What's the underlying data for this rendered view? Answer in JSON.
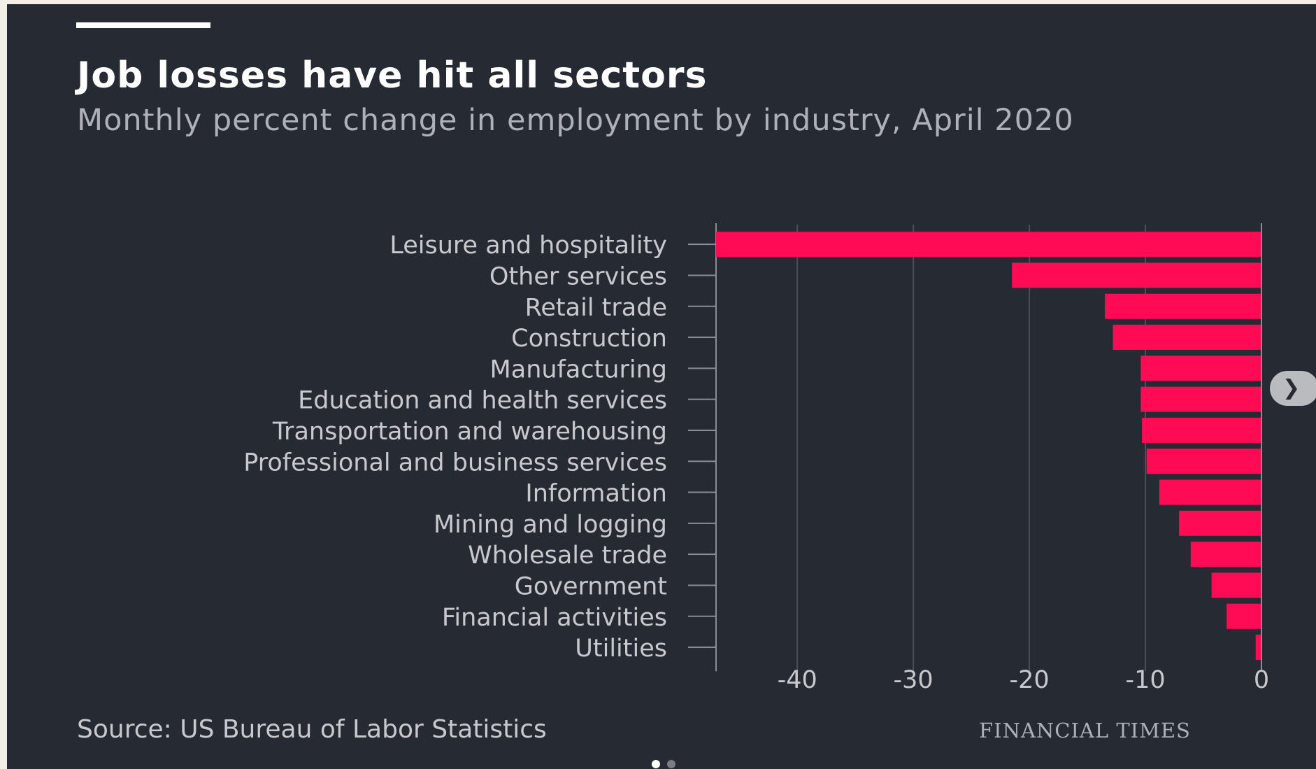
{
  "title": "Job losses have hit all sectors",
  "subtitle": "Monthly percent change in employment by industry, April 2020",
  "source": "Source: US Bureau of Labor Statistics",
  "publisher": "FINANCIAL TIMES",
  "colors": {
    "background": "#262a33",
    "bar": "#ff0a54",
    "text": "#c7c9cd",
    "grid": "#4a4e57",
    "dot_active": "#ffffff",
    "dot_inactive": "#7a7d84"
  },
  "carousel": {
    "next_icon": "chevron-right-icon",
    "dots": 2,
    "active_dot": 0
  },
  "chart_data": {
    "type": "bar",
    "orientation": "horizontal",
    "categories": [
      "Leisure and hospitality",
      "Other services",
      "Retail trade",
      "Construction",
      "Manufacturing",
      "Education and health services",
      "Transportation and warehousing",
      "Professional and business services",
      "Information",
      "Mining and logging",
      "Wholesale trade",
      "Government",
      "Financial activities",
      "Utilities"
    ],
    "values": [
      -47.0,
      -21.5,
      -13.5,
      -12.8,
      -10.4,
      -10.4,
      -10.3,
      -9.9,
      -8.8,
      -7.1,
      -6.1,
      -4.3,
      -3.0,
      -0.5
    ],
    "xlim": [
      -47,
      0
    ],
    "xticks": [
      -40,
      -30,
      -20,
      -10,
      0
    ],
    "grid": true
  }
}
